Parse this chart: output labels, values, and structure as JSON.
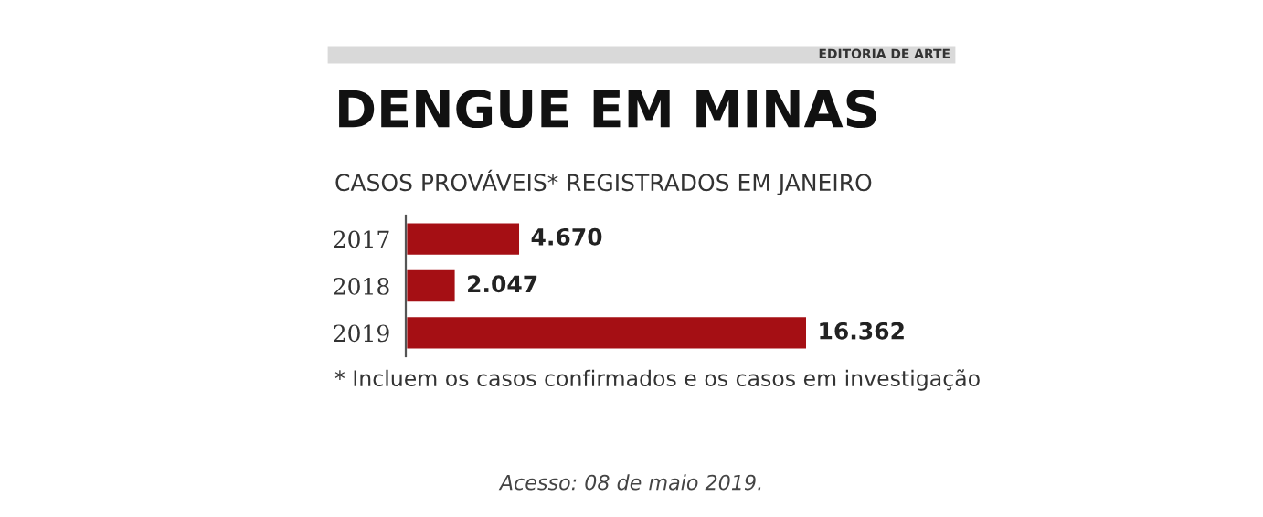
{
  "chart_data": {
    "type": "bar",
    "orientation": "horizontal",
    "title": "DENGUE EM MINAS",
    "subtitle": "CASOS PROVÁVEIS* REGISTRADOS EM JANEIRO",
    "categories": [
      "2017",
      "2018",
      "2019"
    ],
    "values": [
      4670,
      2047,
      16362
    ],
    "value_labels": [
      "4.670",
      "2.047",
      "16.362"
    ],
    "color": "#a50f14",
    "annotations": [
      "EDITORIA DE ARTE",
      "* Incluem os casos confirmados e os casos em investigação",
      "Acesso: 08 de maio 2019."
    ]
  }
}
